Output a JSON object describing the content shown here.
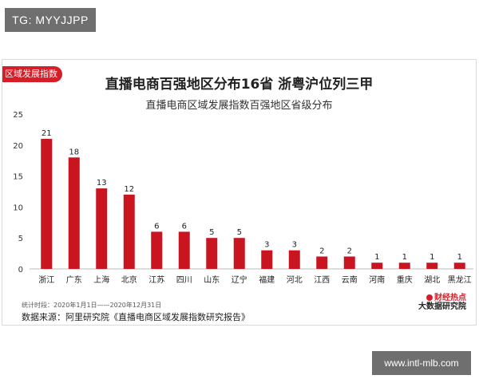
{
  "overlay": {
    "top_tag": "TG: MYYJJPP",
    "footer_url": "www.intl-mlb.com"
  },
  "card": {
    "badge": "区域发展指数",
    "title": "直播电商百强地区分布16省 浙粤沪位列三甲",
    "subtitle": "直播电商区域发展指数百强地区省级分布",
    "source_time": "统计时段：2020年1月1日——2020年12月31日",
    "source_text": "数据来源：阿里研究院《直播电商区域发展指数研究报告》",
    "logo_top": "财经热点",
    "logo_bottom": "大数据研究院"
  },
  "chart_data": {
    "type": "bar",
    "categories": [
      "浙江",
      "广东",
      "上海",
      "北京",
      "江苏",
      "四川",
      "山东",
      "辽宁",
      "福建",
      "河北",
      "江西",
      "云南",
      "河南",
      "重庆",
      "湖北",
      "黑龙江"
    ],
    "values": [
      21,
      18,
      13,
      12,
      6,
      6,
      5,
      5,
      3,
      3,
      2,
      2,
      1,
      1,
      1,
      1
    ],
    "title": "直播电商百强地区分布16省 浙粤沪位列三甲",
    "subtitle": "直播电商区域发展指数百强地区省级分布",
    "ylim": [
      0,
      25
    ],
    "yticks": [
      0,
      5,
      10,
      15,
      20,
      25
    ],
    "grid": false,
    "bar_color": "#c8151f"
  }
}
